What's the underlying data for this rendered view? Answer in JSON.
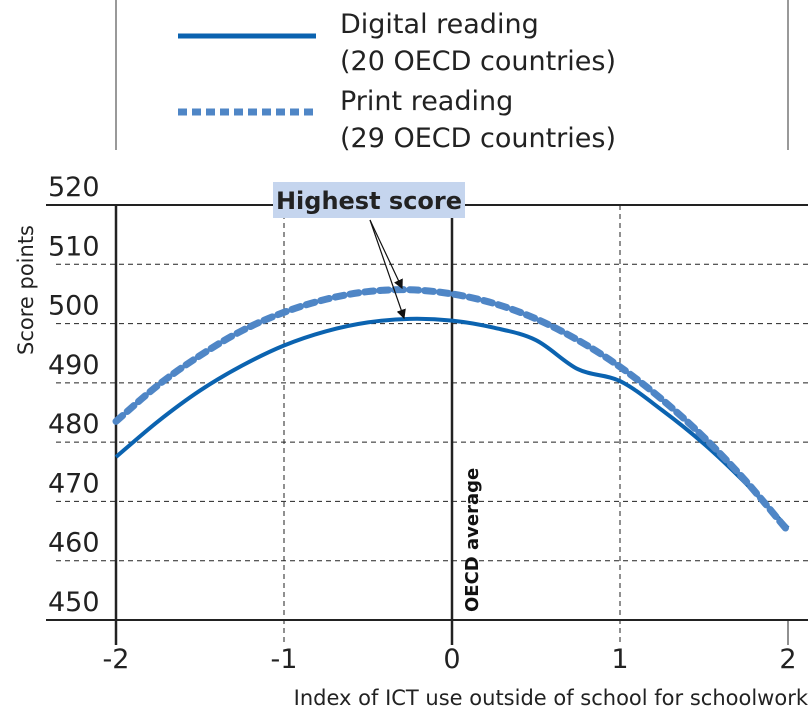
{
  "chart_data": {
    "type": "line",
    "title": "",
    "xlabel": "Index of ICT use outside of school for schoolwork",
    "ylabel": "Score points",
    "xlim": [
      -2,
      2
    ],
    "ylim": [
      450,
      520
    ],
    "x_ticks": [
      "-2",
      "-1",
      "0",
      "1",
      "2"
    ],
    "y_ticks": [
      "450",
      "460",
      "470",
      "480",
      "490",
      "500",
      "510",
      "520"
    ],
    "grid": true,
    "legend_position": "top",
    "series": [
      {
        "name": "Digital reading",
        "sub": "(20 OECD countries)",
        "style": "solid",
        "color": "#0b63b0",
        "x": [
          -2,
          -1.75,
          -1.5,
          -1.25,
          -1,
          -0.75,
          -0.5,
          -0.25,
          0,
          0.25,
          0.5,
          0.75,
          1,
          1.25,
          1.5,
          1.75,
          2
        ],
        "values": [
          477.5,
          483.5,
          488.7,
          492.9,
          496.3,
          498.7,
          500.2,
          500.8,
          500.5,
          499.3,
          497.2,
          492.3,
          490.3,
          485.4,
          479.7,
          473.0,
          465.5
        ]
      },
      {
        "name": "Print reading",
        "sub": "(29 OECD countries)",
        "style": "dashed",
        "color": "#4f86c6",
        "x": [
          -2,
          -1.75,
          -1.5,
          -1.25,
          -1,
          -0.75,
          -0.5,
          -0.25,
          0,
          0.25,
          0.5,
          0.75,
          1,
          1.25,
          1.5,
          1.75,
          2
        ],
        "values": [
          483.5,
          489.6,
          494.6,
          498.8,
          501.9,
          504.1,
          505.4,
          505.7,
          505.0,
          503.4,
          500.8,
          497.2,
          492.7,
          487.2,
          480.8,
          473.4,
          465.0
        ]
      }
    ],
    "annotations": {
      "highest_score": "Highest score",
      "oecd_average": "OECD average"
    }
  }
}
